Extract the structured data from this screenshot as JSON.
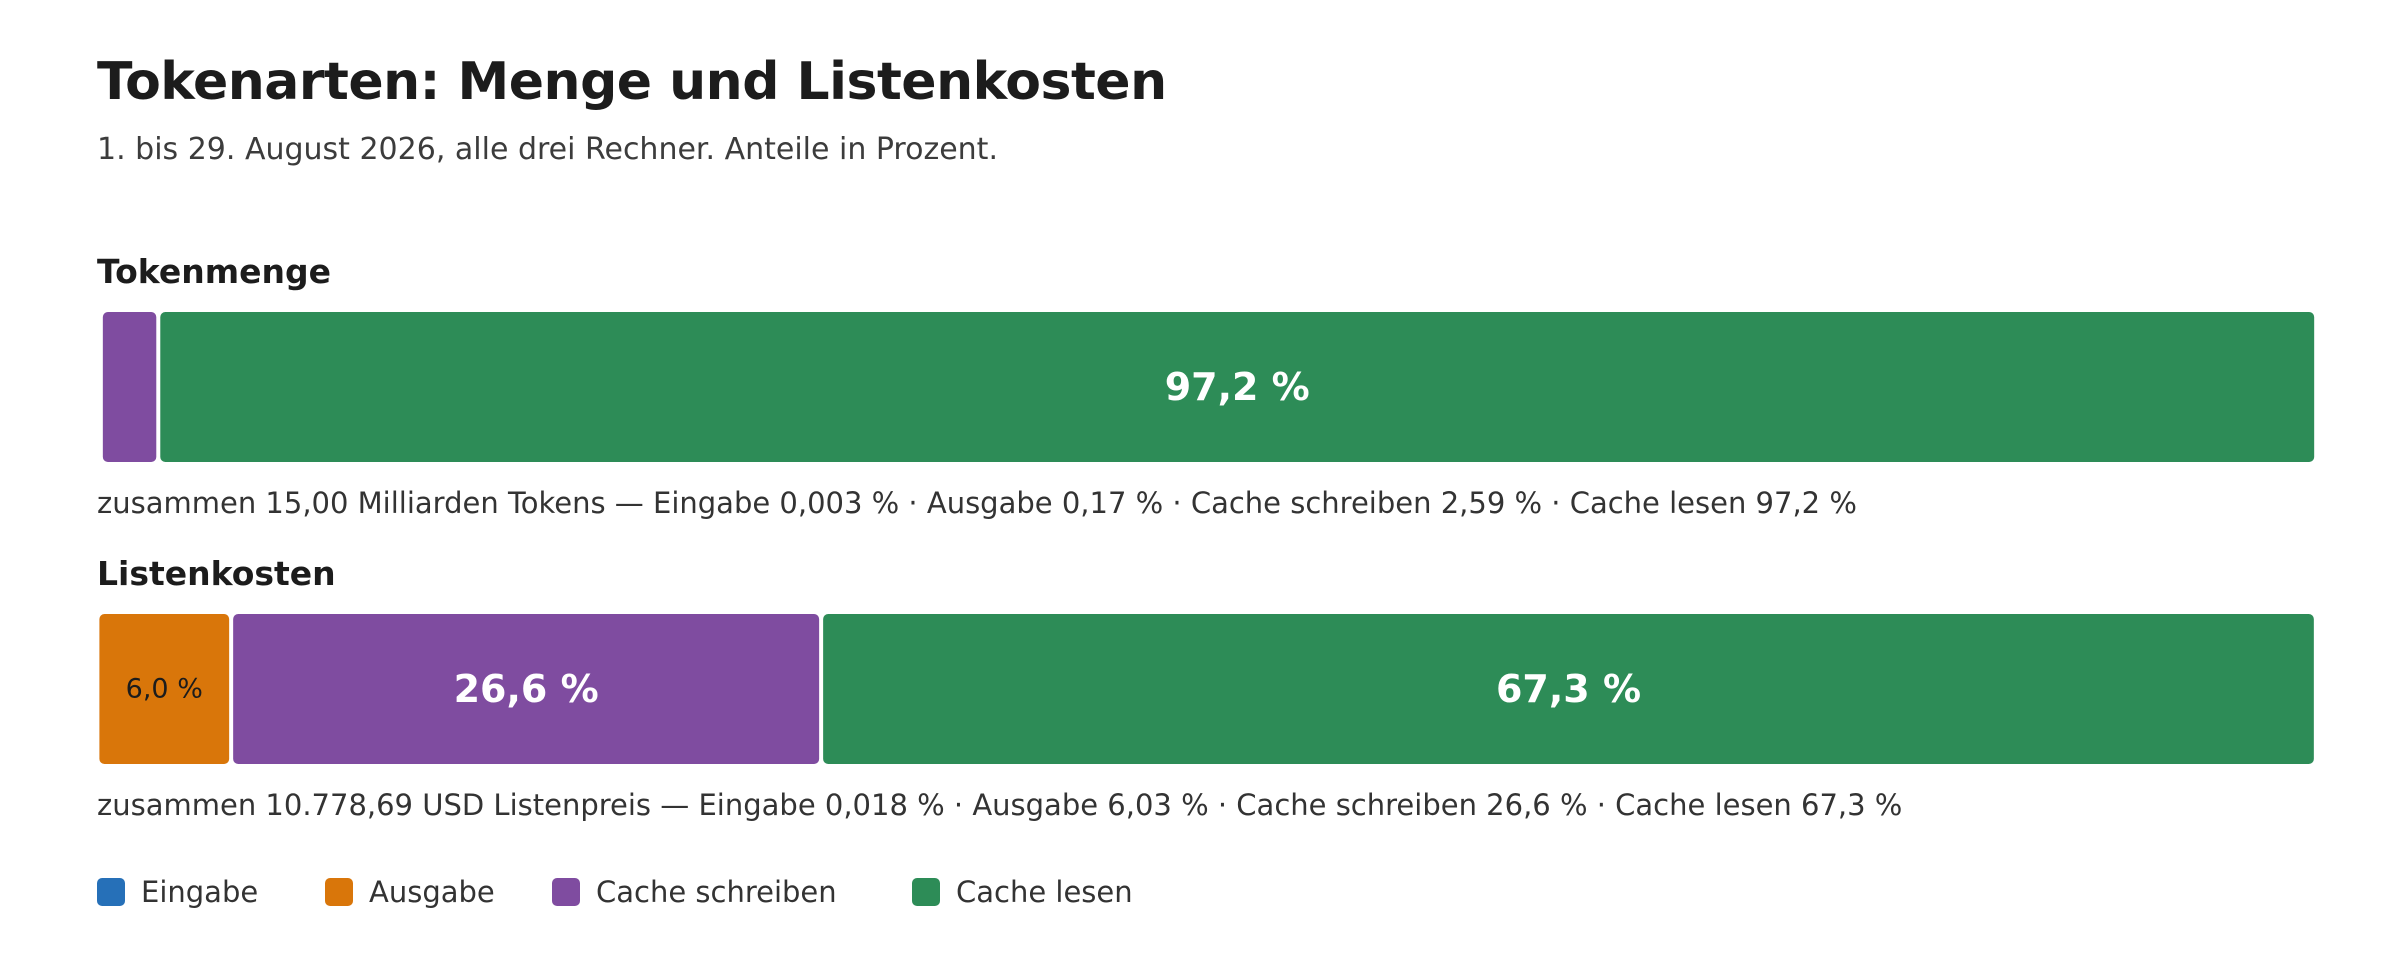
{
  "title": "Tokenarten: Menge und Listenkosten",
  "subtitle": "1. bis 29. August 2026, alle drei Rechner. Anteile in Prozent.",
  "colors": {
    "eingabe": "#2670b8",
    "ausgabe": "#d9760a",
    "cache_schreiben": "#7f4ca0",
    "cache_lesen": "#2d8c57"
  },
  "legend": [
    {
      "key": "eingabe",
      "label": "Eingabe"
    },
    {
      "key": "ausgabe",
      "label": "Ausgabe"
    },
    {
      "key": "cache_schreiben",
      "label": "Cache schreiben"
    },
    {
      "key": "cache_lesen",
      "label": "Cache lesen"
    }
  ],
  "chart_data": [
    {
      "type": "bar",
      "orientation": "horizontal-stacked-100",
      "title": "Tokenmenge",
      "xlim": [
        0,
        100
      ],
      "segments": [
        {
          "key": "eingabe",
          "name": "Eingabe",
          "value": 0.003,
          "label": ""
        },
        {
          "key": "ausgabe",
          "name": "Ausgabe",
          "value": 0.17,
          "label": ""
        },
        {
          "key": "cache_schreiben",
          "name": "Cache schreiben",
          "value": 2.59,
          "label": ""
        },
        {
          "key": "cache_lesen",
          "name": "Cache lesen",
          "value": 97.2,
          "label": "97,2 %"
        }
      ],
      "summary": "zusammen 15,00 Milliarden Tokens — Eingabe 0,003 % · Ausgabe 0,17 % · Cache schreiben 2,59 % · Cache lesen 97,2 %"
    },
    {
      "type": "bar",
      "orientation": "horizontal-stacked-100",
      "title": "Listenkosten",
      "xlim": [
        0,
        100
      ],
      "segments": [
        {
          "key": "eingabe",
          "name": "Eingabe",
          "value": 0.018,
          "label": ""
        },
        {
          "key": "ausgabe",
          "name": "Ausgabe",
          "value": 6.03,
          "label": "6,0 %"
        },
        {
          "key": "cache_schreiben",
          "name": "Cache schreiben",
          "value": 26.6,
          "label": "26,6 %"
        },
        {
          "key": "cache_lesen",
          "name": "Cache lesen",
          "value": 67.3,
          "label": "67,3 %"
        }
      ],
      "summary": "zusammen 10.778,69 USD Listenpreis — Eingabe 0,018 % · Ausgabe 6,03 % · Cache schreiben 26,6 % · Cache lesen 67,3 %"
    }
  ]
}
